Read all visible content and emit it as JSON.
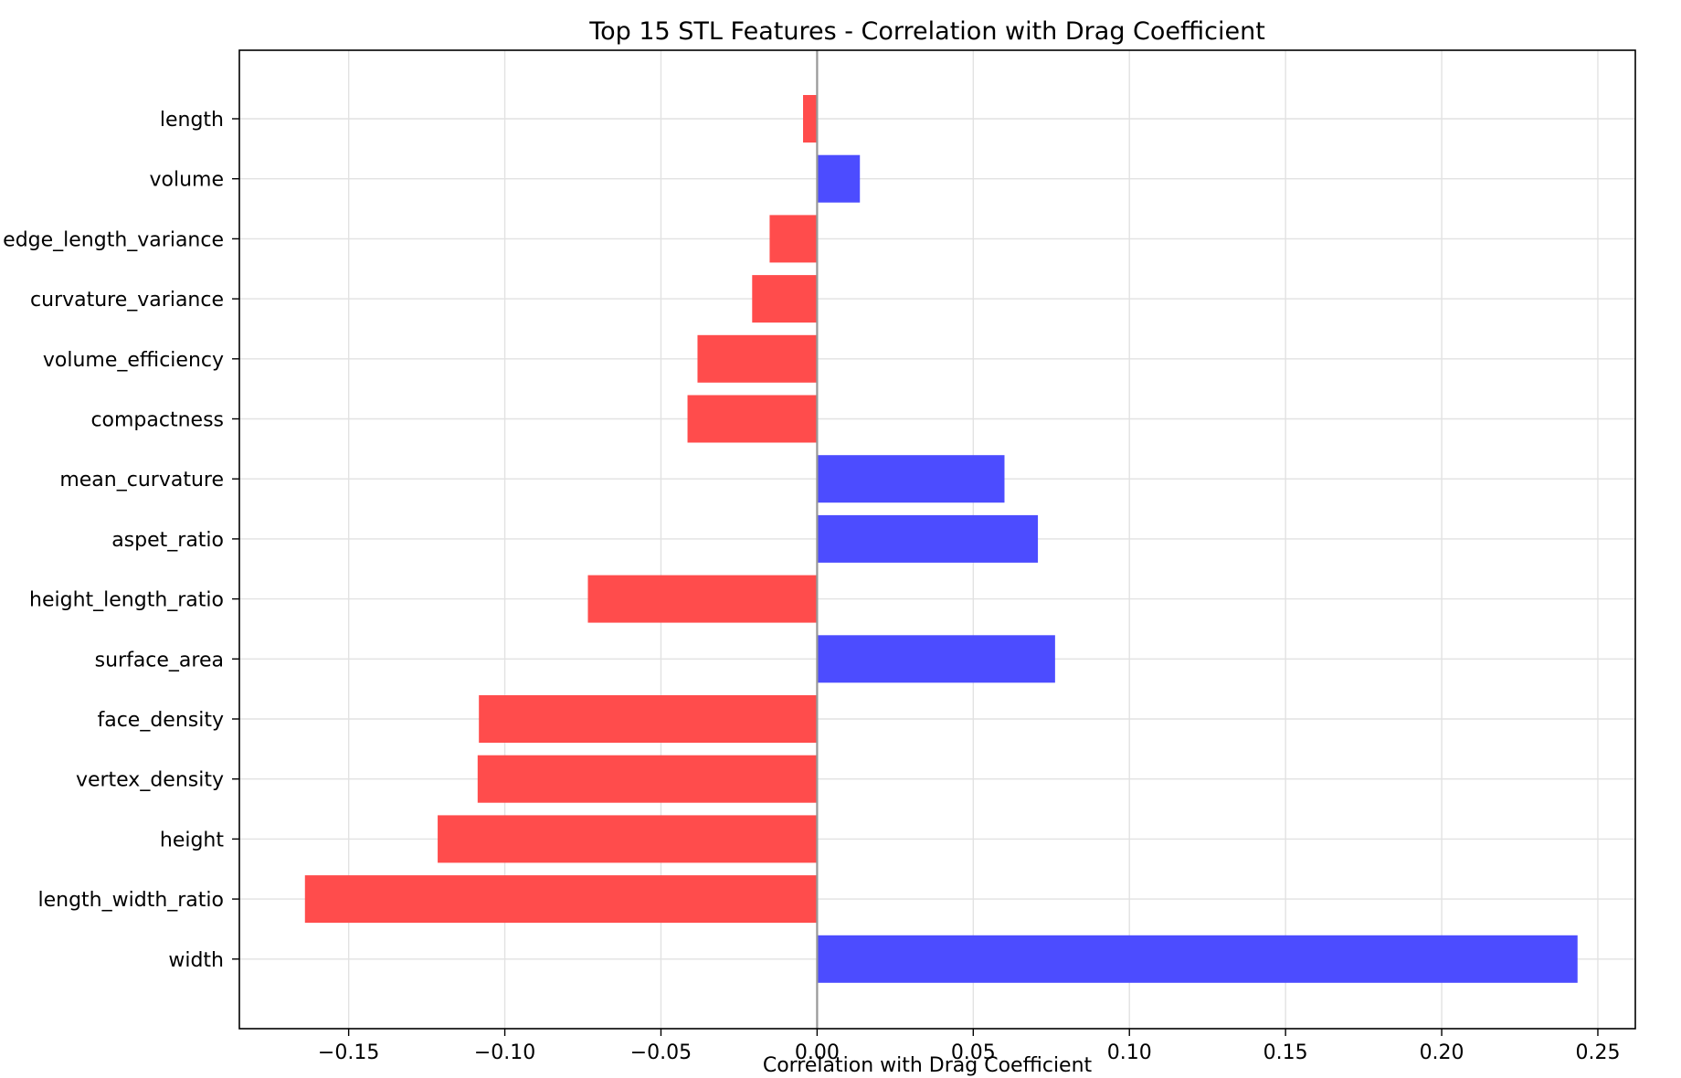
{
  "chart_data": {
    "type": "bar",
    "orientation": "horizontal",
    "title": "Top 15 STL Features - Correlation with Drag Coefficient",
    "xlabel": "Correlation with Drag Coefficient",
    "ylabel": "",
    "xlim": [
      -0.185,
      0.262
    ],
    "xticks": [
      -0.15,
      -0.1,
      -0.05,
      0.0,
      0.05,
      0.1,
      0.15,
      0.2,
      0.25
    ],
    "xtick_labels": [
      "−0.15",
      "−0.10",
      "−0.05",
      "0.00",
      "0.05",
      "0.10",
      "0.15",
      "0.20",
      "0.25"
    ],
    "grid": true,
    "colors": {
      "positive": "#4c4cff",
      "negative": "#ff4c4c",
      "zero_line": "#999999"
    },
    "categories": [
      "length",
      "volume",
      "edge_length_variance",
      "curvature_variance",
      "volume_efficiency",
      "compactness",
      "mean_curvature",
      "aspet_ratio",
      "height_length_ratio",
      "surface_area",
      "face_density",
      "vertex_density",
      "height",
      "length_width_ratio",
      "width"
    ],
    "values": [
      -0.0045,
      0.0137,
      -0.0152,
      -0.0208,
      -0.0383,
      -0.0415,
      0.06,
      0.0707,
      -0.0734,
      0.0762,
      -0.1083,
      -0.1087,
      -0.1215,
      -0.164,
      0.2435
    ]
  }
}
